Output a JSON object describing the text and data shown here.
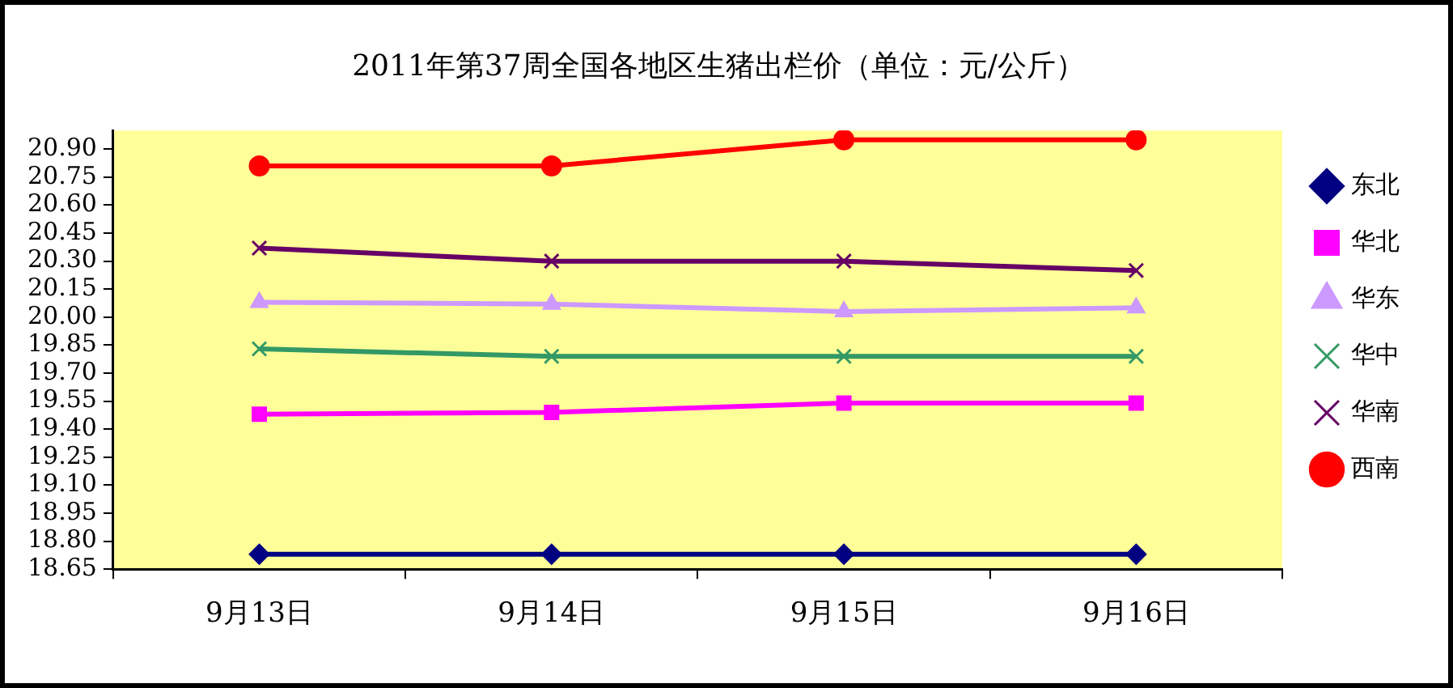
{
  "chart_data": {
    "type": "line",
    "title": "2011年第37周全国各地区生猪出栏价（单位：元/公斤）",
    "categories": [
      "9月13日",
      "9月14日",
      "9月15日",
      "9月16日"
    ],
    "series": [
      {
        "name": "东北",
        "color": "#000080",
        "marker": "diamond",
        "values": [
          18.73,
          18.73,
          18.73,
          18.73
        ]
      },
      {
        "name": "华北",
        "color": "#ff00ff",
        "marker": "square",
        "values": [
          19.48,
          19.49,
          19.54,
          19.54
        ]
      },
      {
        "name": "华东",
        "color": "#cc99ff",
        "marker": "triangle",
        "values": [
          20.08,
          20.07,
          20.03,
          20.05
        ]
      },
      {
        "name": "华中",
        "color": "#339966",
        "marker": "cross",
        "values": [
          19.83,
          19.79,
          19.79,
          19.79
        ]
      },
      {
        "name": "华南",
        "color": "#660066",
        "marker": "cross",
        "values": [
          20.37,
          20.3,
          20.3,
          20.25
        ]
      },
      {
        "name": "西南",
        "color": "#ff0000",
        "marker": "circle",
        "values": [
          20.81,
          20.81,
          20.95,
          20.95
        ]
      }
    ],
    "ylim": [
      18.65,
      21.0
    ],
    "yticks": [
      {
        "value": 18.65,
        "label": "18.65"
      },
      {
        "value": 18.8,
        "label": "18.80"
      },
      {
        "value": 18.95,
        "label": "18.95"
      },
      {
        "value": 19.1,
        "label": "19.10"
      },
      {
        "value": 19.25,
        "label": "19.25"
      },
      {
        "value": 19.4,
        "label": "19.40"
      },
      {
        "value": 19.55,
        "label": "19.55"
      },
      {
        "value": 19.7,
        "label": "19.70"
      },
      {
        "value": 19.85,
        "label": "19.85"
      },
      {
        "value": 20.0,
        "label": "20.00"
      },
      {
        "value": 20.15,
        "label": "20.15"
      },
      {
        "value": 20.3,
        "label": "20.30"
      },
      {
        "value": 20.45,
        "label": "20.45"
      },
      {
        "value": 20.6,
        "label": "20.60"
      },
      {
        "value": 20.75,
        "label": "20.75"
      },
      {
        "value": 20.9,
        "label": "20.90"
      }
    ],
    "grid": false,
    "legend": "right",
    "line_style": "solid"
  }
}
